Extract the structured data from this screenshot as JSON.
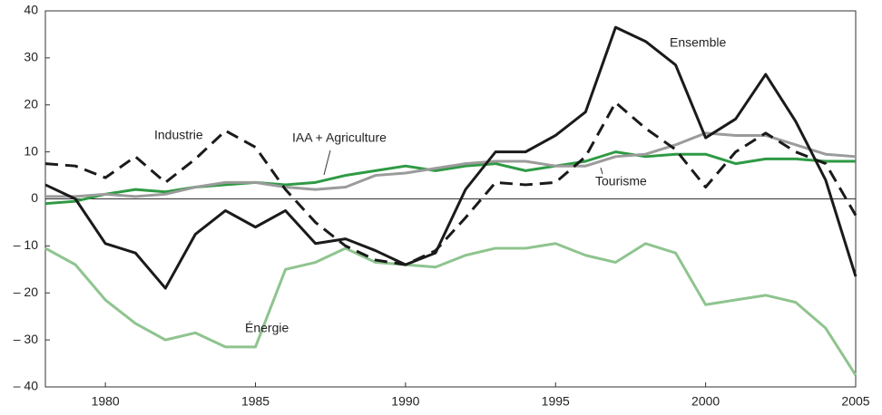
{
  "chart_data": {
    "type": "line",
    "x": [
      1978,
      1979,
      1980,
      1981,
      1982,
      1983,
      1984,
      1985,
      1986,
      1987,
      1988,
      1989,
      1990,
      1991,
      1992,
      1993,
      1994,
      1995,
      1996,
      1997,
      1998,
      1999,
      2000,
      2001,
      2002,
      2003,
      2004,
      2005
    ],
    "xlim": [
      1978,
      2005
    ],
    "xticks": [
      1980,
      1985,
      1990,
      1995,
      2000,
      2005
    ],
    "ylim": [
      -40,
      40
    ],
    "yticks": [
      {
        "value": -40,
        "label": "– 40"
      },
      {
        "value": -30,
        "label": "– 30"
      },
      {
        "value": -20,
        "label": "– 20"
      },
      {
        "value": -10,
        "label": "– 10"
      },
      0,
      10,
      20,
      30,
      40
    ],
    "grid": false,
    "series": [
      {
        "name": "Énergie",
        "color": "#8fc48f",
        "dash": false,
        "values": [
          -10.5,
          -14,
          -21.5,
          -26.5,
          -30,
          -28.5,
          -31.5,
          -31.5,
          -15,
          -13.5,
          -10.5,
          -13.5,
          -14,
          -14.5,
          -12,
          -10.5,
          -10.5,
          -9.5,
          -12,
          -13.5,
          -9.5,
          -11.5,
          -22.5,
          -21.5,
          -20.5,
          -22,
          -27.5,
          -37.5
        ]
      },
      {
        "name": "IAA + Agriculture",
        "color": "#2e9a44",
        "dash": false,
        "values": [
          -1,
          -0.5,
          1,
          2,
          1.5,
          2.5,
          3,
          3.5,
          3,
          3.5,
          5,
          6,
          7,
          6,
          7,
          7.5,
          6,
          7,
          8,
          10,
          9,
          9.5,
          9.5,
          7.5,
          8.5,
          8.5,
          8,
          8
        ]
      },
      {
        "name": "Tourisme",
        "color": "#9b9b9b",
        "dash": false,
        "values": [
          0.5,
          0.5,
          1,
          0.5,
          1,
          2.5,
          3.5,
          3.5,
          2.5,
          2,
          2.5,
          5,
          5.5,
          6.5,
          7.5,
          8,
          8,
          7,
          7,
          9,
          9.5,
          11.5,
          14,
          13.5,
          13.5,
          11.5,
          9.5,
          9
        ]
      },
      {
        "name": "Industrie",
        "color": "#1a1a1a",
        "dash": true,
        "values": [
          7.5,
          7,
          4.5,
          9,
          3.5,
          8.5,
          14.5,
          11,
          2,
          -5,
          -10,
          -13,
          -14,
          -11,
          -4,
          3.5,
          3,
          3.5,
          9,
          20.5,
          15,
          10.5,
          2.5,
          10,
          14,
          10,
          7.5,
          -3.5
        ]
      },
      {
        "name": "Ensemble",
        "color": "#1a1a1a",
        "dash": false,
        "values": [
          3,
          0,
          -9.5,
          -11.5,
          -19,
          -7.5,
          -2.5,
          -6,
          -2.5,
          -9.5,
          -8.5,
          -11,
          -14,
          -11.5,
          2,
          10,
          10,
          13.5,
          18.5,
          36.5,
          33.5,
          28.5,
          13,
          17,
          26.5,
          16.5,
          4,
          -16.5
        ]
      }
    ]
  }
}
